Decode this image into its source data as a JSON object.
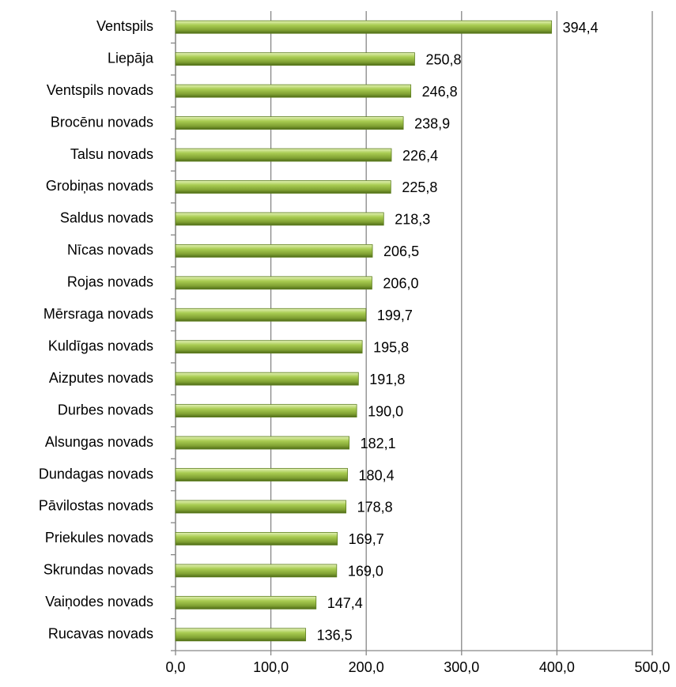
{
  "chart_data": {
    "type": "barh",
    "categories": [
      "Ventspils",
      "Liepāja",
      "Ventspils novads",
      "Brocēnu novads",
      "Talsu novads",
      "Grobiņas novads",
      "Saldus novads",
      "Nīcas novads",
      "Rojas novads",
      "Mērsraga novads",
      "Kuldīgas novads",
      "Aizputes novads",
      "Durbes novads",
      "Alsungas novads",
      "Dundagas novads",
      "Pāvilostas novads",
      "Priekules novads",
      "Skrundas novads",
      "Vaiņodes novads",
      "Rucavas novads"
    ],
    "values": [
      394.4,
      250.8,
      246.8,
      238.9,
      226.4,
      225.8,
      218.3,
      206.5,
      206.0,
      199.7,
      195.8,
      191.8,
      190.0,
      182.1,
      180.4,
      178.8,
      169.7,
      169.0,
      147.4,
      136.5
    ],
    "value_labels": [
      "394,4",
      "250,8",
      "246,8",
      "238,9",
      "226,4",
      "225,8",
      "218,3",
      "206,5",
      "206,0",
      "199,7",
      "195,8",
      "191,8",
      "190,0",
      "182,1",
      "180,4",
      "178,8",
      "169,7",
      "169,0",
      "147,4",
      "136,5"
    ],
    "color": "#9bbb59",
    "xlim": [
      0,
      500
    ],
    "xticks": [
      {
        "value": 0,
        "label": "0,0"
      },
      {
        "value": 100,
        "label": "100,0"
      },
      {
        "value": 200,
        "label": "200,0"
      },
      {
        "value": 300,
        "label": "300,0"
      },
      {
        "value": 400,
        "label": "400,0"
      },
      {
        "value": 500,
        "label": "500,0"
      }
    ],
    "grid": true
  }
}
